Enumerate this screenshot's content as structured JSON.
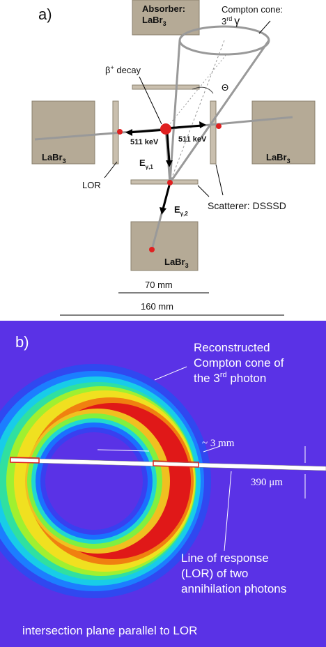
{
  "panel_a": {
    "label": "a)",
    "absorber_top": {
      "line1": "Absorber:",
      "text": "LaBr",
      "sub": "3"
    },
    "compton_cone": {
      "line1": "Compton cone:",
      "text": "3",
      "sup": "rd",
      "symbol": "γ"
    },
    "theta": "Θ",
    "beta_decay": {
      "text": "β",
      "sup": "+",
      "rest": " decay"
    },
    "energy_left": "511 keV",
    "energy_right": "511 keV",
    "absorber_left": {
      "text": "LaBr",
      "sub": "3"
    },
    "absorber_right": {
      "text": "LaBr",
      "sub": "3"
    },
    "absorber_bottom": {
      "text": "LaBr",
      "sub": "3"
    },
    "lor": "LOR",
    "e_gamma_1": {
      "text": "E",
      "sub": "γ,1"
    },
    "e_gamma_2": {
      "text": "E",
      "sub": "γ,2"
    },
    "scatterer": "Scatterer: DSSSD",
    "dim_inner": "70 mm",
    "dim_outer": "160 mm"
  },
  "panel_b": {
    "label": "b)",
    "cone_note": {
      "line1": "Reconstructed",
      "line2": "Compton cone of",
      "line3_pre": "the 3",
      "line3_sup": "rd",
      "line3_post": " photon"
    },
    "width_note": "~ 3 mm",
    "thickness_note": "390 μm",
    "lor_note": {
      "line1": "Line of response",
      "line2": "(LOR) of two",
      "line3": "annihilation photons"
    },
    "plane_note": "intersection plane parallel to LOR"
  }
}
